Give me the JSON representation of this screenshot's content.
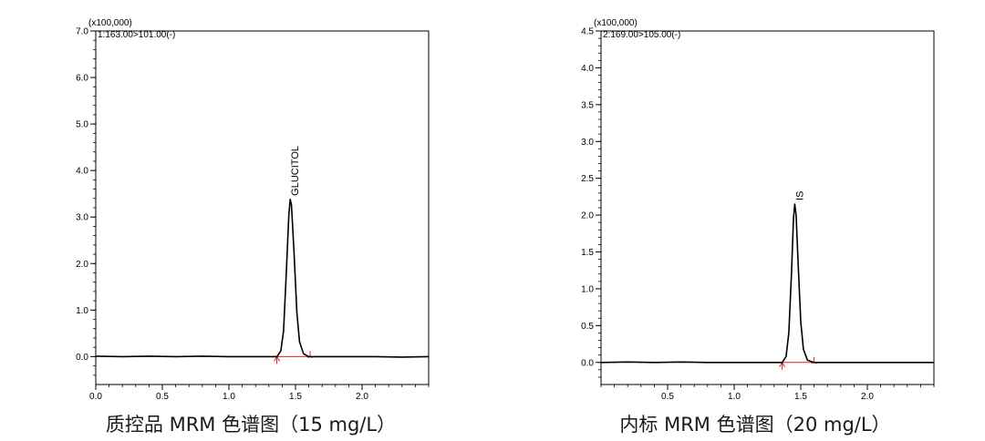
{
  "chart_data": [
    {
      "type": "line",
      "scale_note": "(x100,000)",
      "channel": "1:163.00>101.00(-)",
      "caption": "质控品 MRM 色谱图（15 mg/L）",
      "xlim": [
        0.0,
        2.5
      ],
      "ylim": [
        -0.6,
        7.0
      ],
      "x_ticks": [
        0.0,
        0.5,
        1.0,
        1.5,
        2.0
      ],
      "x_tick_labels": [
        "0.0",
        "0.5",
        "1.0",
        "1.5",
        "2.0"
      ],
      "y_ticks": [
        0.0,
        1.0,
        2.0,
        3.0,
        4.0,
        5.0,
        6.0,
        7.0
      ],
      "y_tick_labels": [
        "0.0",
        "1.0",
        "2.0",
        "3.0",
        "4.0",
        "5.0",
        "6.0",
        "7.0"
      ],
      "series": [
        {
          "peak_label": "GLUCITOL",
          "x": [
            0.0,
            0.2,
            0.4,
            0.6,
            0.8,
            1.0,
            1.2,
            1.3,
            1.36,
            1.39,
            1.41,
            1.43,
            1.45,
            1.46,
            1.47,
            1.49,
            1.51,
            1.53,
            1.56,
            1.6,
            1.7,
            1.9,
            2.1,
            2.3,
            2.5
          ],
          "y": [
            0.01,
            0.0,
            0.01,
            0.0,
            0.01,
            0.0,
            0.0,
            0.0,
            0.0,
            0.12,
            0.55,
            1.75,
            3.05,
            3.38,
            3.25,
            2.2,
            0.95,
            0.32,
            0.06,
            0.0,
            0.0,
            0.0,
            0.0,
            -0.01,
            0.0
          ]
        }
      ],
      "integration": {
        "start": 1.36,
        "end": 1.61,
        "baseline": 0.0,
        "color": "#e02020"
      }
    },
    {
      "type": "line",
      "scale_note": "(x100,000)",
      "channel": "2:169.00>105.00(-)",
      "caption": "内标 MRM 色谱图（20 mg/L）",
      "xlim": [
        0.0,
        2.5
      ],
      "ylim": [
        -0.3,
        4.5
      ],
      "x_ticks": [
        0.5,
        1.0,
        1.5,
        2.0
      ],
      "x_tick_labels": [
        "0.5",
        "1.0",
        "1.5",
        "2.0"
      ],
      "y_ticks": [
        0.0,
        0.5,
        1.0,
        1.5,
        2.0,
        2.5,
        3.0,
        3.5,
        4.0,
        4.5
      ],
      "y_tick_labels": [
        "0.0",
        "0.5",
        "1.0",
        "1.5",
        "2.0",
        "2.5",
        "3.0",
        "3.5",
        "4.0",
        "4.5"
      ],
      "series": [
        {
          "peak_label": "IS",
          "x": [
            0.0,
            0.2,
            0.4,
            0.6,
            0.8,
            1.0,
            1.2,
            1.3,
            1.36,
            1.39,
            1.41,
            1.43,
            1.445,
            1.455,
            1.465,
            1.48,
            1.5,
            1.52,
            1.55,
            1.6,
            1.7,
            1.9,
            2.1,
            2.3,
            2.5
          ],
          "y": [
            0.0,
            0.005,
            0.0,
            0.005,
            0.0,
            0.0,
            0.0,
            0.0,
            0.0,
            0.08,
            0.4,
            1.2,
            1.95,
            2.15,
            2.0,
            1.35,
            0.55,
            0.18,
            0.03,
            0.0,
            0.0,
            0.0,
            0.0,
            0.0,
            0.0
          ]
        }
      ],
      "integration": {
        "start": 1.36,
        "end": 1.6,
        "baseline": 0.0,
        "color": "#e02020"
      }
    }
  ]
}
